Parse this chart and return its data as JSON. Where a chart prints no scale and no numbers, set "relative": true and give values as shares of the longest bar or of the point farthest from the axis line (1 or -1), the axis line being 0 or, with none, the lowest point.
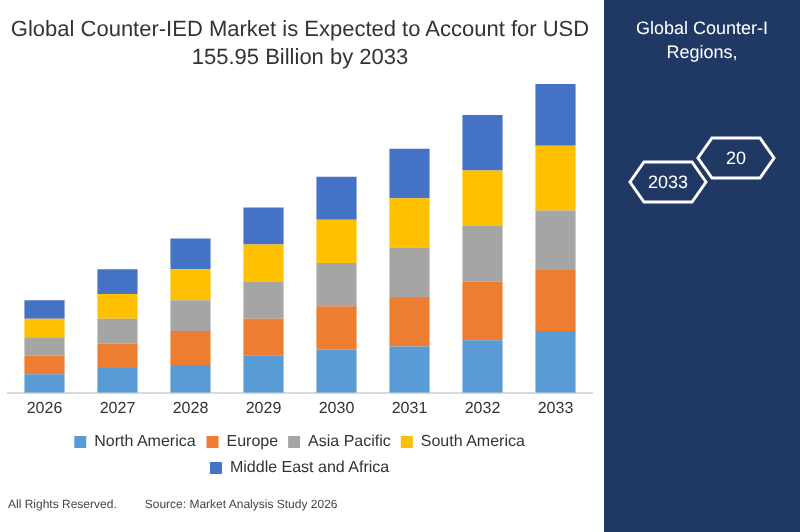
{
  "chart_data": {
    "type": "bar",
    "title": "Global Counter-IED Market is Expected to Account for USD 155.95 Billion by 2033",
    "categories": [
      "2026",
      "2027",
      "2028",
      "2029",
      "2030",
      "2031",
      "2032",
      "2033"
    ],
    "stacked": true,
    "relative": true,
    "legend": "bottom",
    "grid": false,
    "series": [
      {
        "name": "North America",
        "color": "#5b9bd5",
        "values": [
          0.06,
          0.08,
          0.09,
          0.12,
          0.14,
          0.15,
          0.17,
          0.2
        ]
      },
      {
        "name": "Europe",
        "color": "#ed7d31",
        "values": [
          0.06,
          0.08,
          0.11,
          0.12,
          0.14,
          0.16,
          0.19,
          0.2
        ]
      },
      {
        "name": "Asia Pacific",
        "color": "#a5a5a5",
        "values": [
          0.06,
          0.08,
          0.1,
          0.12,
          0.14,
          0.16,
          0.18,
          0.19
        ]
      },
      {
        "name": "South America",
        "color": "#ffc000",
        "values": [
          0.06,
          0.08,
          0.1,
          0.12,
          0.14,
          0.16,
          0.18,
          0.21
        ]
      },
      {
        "name": "Middle East and Africa",
        "color": "#4472c4",
        "values": [
          0.06,
          0.08,
          0.1,
          0.12,
          0.14,
          0.16,
          0.18,
          0.2
        ]
      }
    ],
    "annotations": [
      "All Rights Reserved.",
      "Source: Market Analysis Study 2026",
      "Global Counter-I",
      "Regions,",
      "2033",
      "20"
    ]
  }
}
